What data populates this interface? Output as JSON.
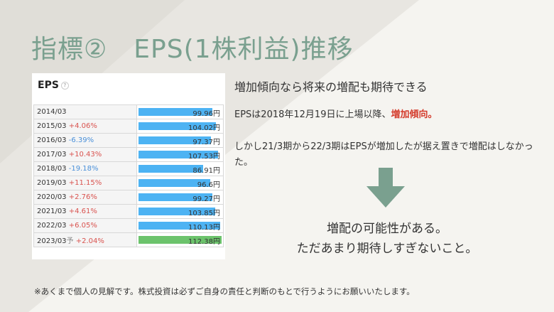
{
  "title": "指標②　EPS(1株利益)推移",
  "eps_table": {
    "label": "EPS",
    "rows": [
      {
        "year": "2014/03",
        "change": "",
        "value": "99.96円",
        "eps": 99.96
      },
      {
        "year": "2015/03",
        "change": "+4.06%",
        "value": "104.02円",
        "eps": 104.02
      },
      {
        "year": "2016/03",
        "change": "-6.39%",
        "value": "97.37円",
        "eps": 97.37
      },
      {
        "year": "2017/03",
        "change": "+10.43%",
        "value": "107.53円",
        "eps": 107.53
      },
      {
        "year": "2018/03",
        "change": "-19.18%",
        "value": "86.91円",
        "eps": 86.91
      },
      {
        "year": "2019/03",
        "change": "+11.15%",
        "value": "96.6円",
        "eps": 96.6
      },
      {
        "year": "2020/03",
        "change": "+2.76%",
        "value": "99.27円",
        "eps": 99.27
      },
      {
        "year": "2021/03",
        "change": "+4.61%",
        "value": "103.85円",
        "eps": 103.85
      },
      {
        "year": "2022/03",
        "change": "+6.05%",
        "value": "110.13円",
        "eps": 110.13
      },
      {
        "year": "2023/03",
        "forecast_mark": "予",
        "change": "+2.04%",
        "value": "112.38円",
        "eps": 112.38
      }
    ],
    "colors": {
      "bar": "#4db3f3",
      "forecast_bar": "#6cc36c",
      "up": "#d9534f",
      "down": "#4a90d9"
    }
  },
  "text": {
    "heading": "増加傾向なら将来の増配も期待できる",
    "line2_prefix": "EPSは2018年12月19日に上場以降、",
    "line2_highlight": "増加傾向。",
    "line3": "しかし21/3期から22/3期はEPSが増加したが据え置きで増配はしなかった。",
    "conclusion_line1": "増配の可能性がある。",
    "conclusion_line2": "ただあまり期待しすぎないこと。",
    "footnote": "※あくまで個人の見解です。株式投資は必ずご自身の責任と判断のもとで行うようにお願いいたします。"
  },
  "colors": {
    "title": "#7aa08f",
    "arrow": "#7aa08f",
    "highlight": "#d43a2a"
  }
}
